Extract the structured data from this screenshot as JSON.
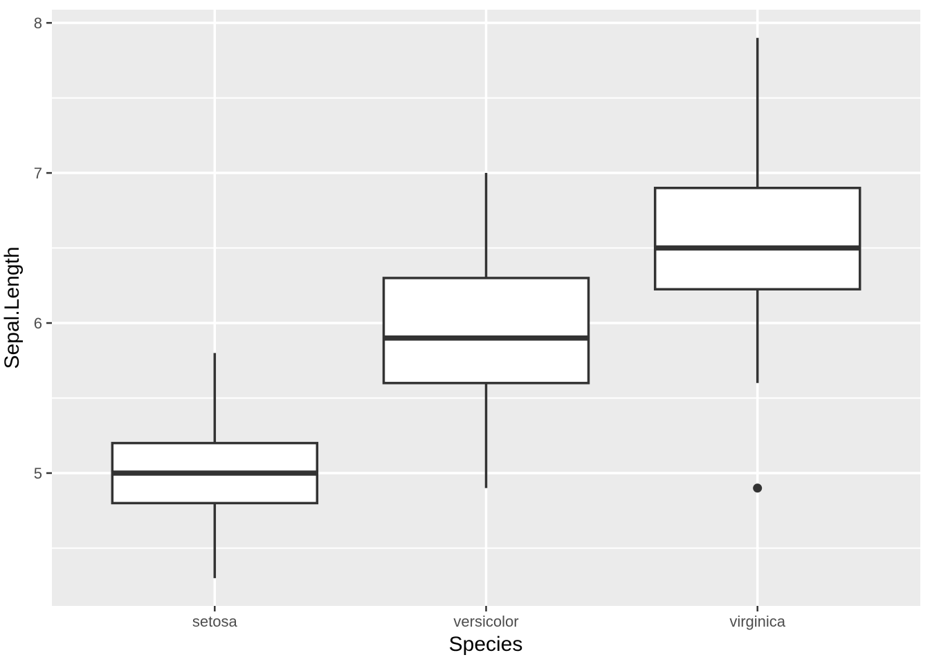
{
  "chart_data": {
    "type": "boxplot",
    "title": "",
    "xlabel": "Species",
    "ylabel": "Sepal.Length",
    "categories": [
      "setosa",
      "versicolor",
      "virginica"
    ],
    "series": [
      {
        "name": "setosa",
        "whisker_low": 4.3,
        "q1": 4.8,
        "median": 5.0,
        "q3": 5.2,
        "whisker_high": 5.8,
        "outliers": []
      },
      {
        "name": "versicolor",
        "whisker_low": 4.9,
        "q1": 5.6,
        "median": 5.9,
        "q3": 6.3,
        "whisker_high": 7.0,
        "outliers": []
      },
      {
        "name": "virginica",
        "whisker_low": 5.6,
        "q1": 6.225,
        "median": 6.5,
        "q3": 6.9,
        "whisker_high": 7.9,
        "outliers": [
          4.9
        ]
      }
    ],
    "y_major_ticks": [
      5,
      6,
      7,
      8
    ],
    "y_minor_ticks": [
      4.5,
      5.5,
      6.5,
      7.5
    ],
    "ylim": [
      4.115,
      8.088
    ],
    "grid": true,
    "legend": "none",
    "style": {
      "panel_bg": "#EBEBEB",
      "grid_color": "#FFFFFF",
      "box_fill": "#FFFFFF",
      "box_stroke": "#333333",
      "tick_mark_color": "#333333",
      "tick_label_color": "#4D4D4D",
      "axis_title_color": "#000000"
    }
  }
}
